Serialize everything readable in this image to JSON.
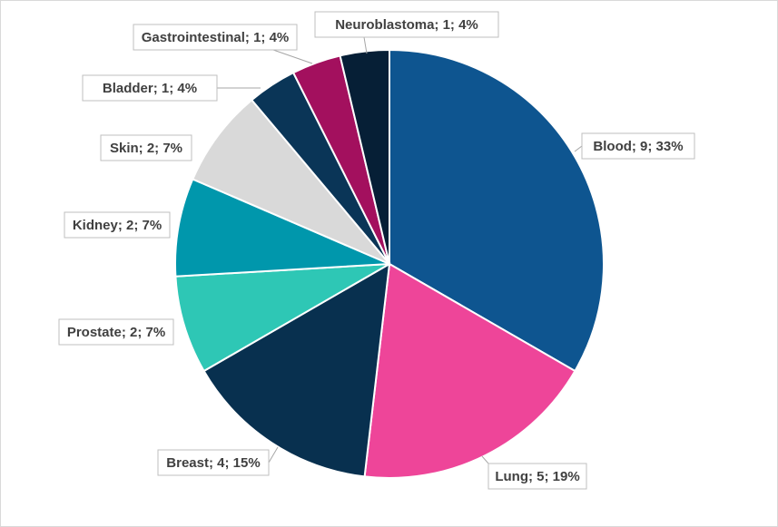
{
  "chart_data": {
    "type": "pie",
    "title": "",
    "slices": [
      {
        "name": "Blood",
        "value": 9,
        "percent": "33%",
        "label": "Blood; 9; 33%",
        "color": "#0e5590"
      },
      {
        "name": "Lung",
        "value": 5,
        "percent": "19%",
        "label": "Lung; 5; 19%",
        "color": "#ee4599"
      },
      {
        "name": "Breast",
        "value": 4,
        "percent": "15%",
        "label": "Breast; 4; 15%",
        "color": "#08304f"
      },
      {
        "name": "Prostate",
        "value": 2,
        "percent": "7%",
        "label": "Prostate; 2; 7%",
        "color": "#2ec7b5"
      },
      {
        "name": "Kidney",
        "value": 2,
        "percent": "7%",
        "label": "Kidney; 2; 7%",
        "color": "#0097ac"
      },
      {
        "name": "Skin",
        "value": 2,
        "percent": "7%",
        "label": "Skin; 2; 7%",
        "color": "#d9d9d9"
      },
      {
        "name": "Bladder",
        "value": 1,
        "percent": "4%",
        "label": "Bladder; 1; 4%",
        "color": "#0a3557"
      },
      {
        "name": "Gastrointestinal",
        "value": 1,
        "percent": "4%",
        "label": "Gastrointestinal; 1; 4%",
        "color": "#a3105e"
      },
      {
        "name": "Neuroblastoma",
        "value": 1,
        "percent": "4%",
        "label": "Neuroblastoma; 1; 4%",
        "color": "#061f36"
      }
    ],
    "legend": "none",
    "data_labels": "outside-with-leader-lines"
  }
}
